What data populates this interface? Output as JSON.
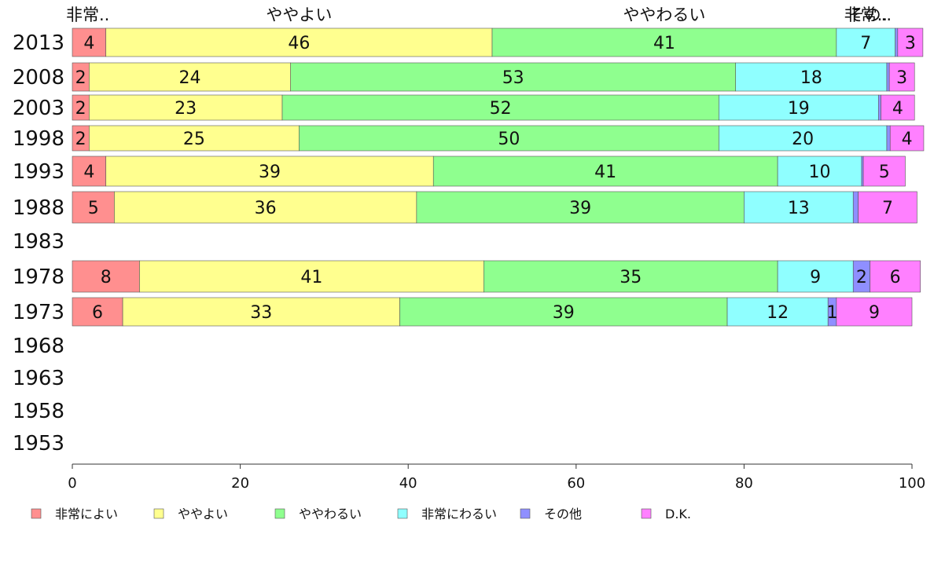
{
  "chart_data": {
    "type": "bar",
    "orientation": "horizontal",
    "stacked": true,
    "categories": [
      "2013",
      "2008",
      "2003",
      "1998",
      "1993",
      "1988",
      "1983",
      "1978",
      "1973",
      "1968",
      "1963",
      "1958",
      "1953"
    ],
    "series": [
      {
        "name": "非常によい",
        "short_label": "非常..",
        "color": "#ff8f8f",
        "values": [
          4,
          2,
          2,
          2,
          4,
          5,
          null,
          8,
          6,
          null,
          null,
          null,
          null
        ]
      },
      {
        "name": "ややよい",
        "short_label": "ややよい",
        "color": "#ffff8f",
        "values": [
          46,
          24,
          23,
          25,
          39,
          36,
          null,
          41,
          33,
          null,
          null,
          null,
          null
        ]
      },
      {
        "name": "ややわるい",
        "short_label": "ややわるい",
        "color": "#8fff8f",
        "values": [
          41,
          53,
          52,
          50,
          41,
          39,
          null,
          35,
          39,
          null,
          null,
          null,
          null
        ]
      },
      {
        "name": "非常にわるい",
        "short_label": "非常..",
        "color": "#8fffff",
        "values": [
          7,
          18,
          19,
          20,
          10,
          13,
          null,
          9,
          12,
          null,
          null,
          null,
          null
        ]
      },
      {
        "name": "その他",
        "short_label": "その..",
        "color": "#8f8fff",
        "values": [
          0.3,
          0.3,
          0.3,
          0.4,
          0.2,
          0.6,
          null,
          2,
          1,
          null,
          null,
          null,
          null
        ]
      },
      {
        "name": "D.K.",
        "short_label": "",
        "color": "#ff80ff",
        "values": [
          3,
          3,
          4,
          4,
          5,
          7,
          null,
          6,
          9,
          null,
          null,
          null,
          null
        ]
      }
    ],
    "data_label_min": 1,
    "xlim": [
      0,
      100
    ],
    "xticks": [
      0,
      20,
      40,
      60,
      80,
      100
    ],
    "title": "",
    "xlabel": "",
    "ylabel": "",
    "grid": false,
    "legend_position": "bottom"
  }
}
